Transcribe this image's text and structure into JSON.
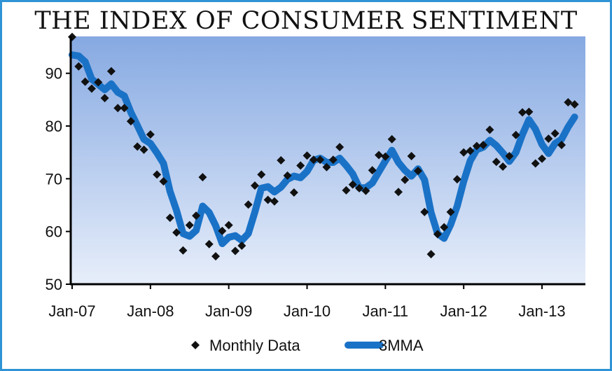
{
  "chart_data": {
    "type": "line",
    "title": "THE INDEX OF CONSUMER SENTIMENT",
    "xlabel": "",
    "ylabel": "",
    "ylim": [
      50,
      97
    ],
    "yticks": [
      50,
      60,
      70,
      80,
      90
    ],
    "x_tick_labels": [
      "Jan-07",
      "Jan-08",
      "Jan-09",
      "Jan-10",
      "Jan-11",
      "Jan-12",
      "Jan-13"
    ],
    "x_start": "2007-01",
    "legend": {
      "position": "bottom"
    },
    "colors": {
      "line": "#1a72c7",
      "marker": "#111111",
      "bg_top": "#86a9e2",
      "bg_bottom": "#e7eefa",
      "frame": "#2f93d6"
    },
    "series": [
      {
        "name": "Monthly Data",
        "style": "markers",
        "values": [
          96.9,
          91.3,
          88.4,
          87.1,
          88.3,
          85.3,
          90.4,
          83.4,
          83.4,
          80.9,
          76.1,
          75.5,
          78.4,
          70.8,
          69.5,
          62.6,
          59.8,
          56.4,
          61.2,
          63.0,
          70.3,
          57.6,
          55.3,
          60.1,
          61.2,
          56.3,
          57.3,
          65.1,
          68.7,
          70.8,
          66.0,
          65.7,
          73.5,
          70.6,
          67.4,
          72.5,
          74.4,
          73.6,
          73.6,
          72.2,
          73.6,
          76.0,
          67.8,
          68.9,
          68.2,
          67.7,
          71.6,
          74.5,
          74.2,
          77.5,
          67.5,
          69.8,
          74.3,
          71.5,
          63.7,
          55.7,
          59.5,
          60.8,
          63.7,
          69.9,
          75.0,
          75.3,
          76.2,
          76.4,
          79.3,
          73.2,
          72.3,
          74.3,
          78.3,
          82.6,
          82.7,
          72.9,
          73.8,
          77.6,
          78.6,
          76.4,
          84.5,
          84.1
        ]
      },
      {
        "name": "3MMA",
        "style": "line",
        "values": [
          93.5,
          93.3,
          92.2,
          88.9,
          87.9,
          86.9,
          88.0,
          86.4,
          85.7,
          82.6,
          80.1,
          77.5,
          76.7,
          74.9,
          72.9,
          67.6,
          64.0,
          59.6,
          59.1,
          60.2,
          64.8,
          63.6,
          61.1,
          57.7,
          58.9,
          59.2,
          58.3,
          59.6,
          63.7,
          68.2,
          68.5,
          67.5,
          68.4,
          69.9,
          70.5,
          70.2,
          71.4,
          73.5,
          73.9,
          73.1,
          73.1,
          73.9,
          72.5,
          70.9,
          68.3,
          68.3,
          69.2,
          71.3,
          73.4,
          75.4,
          73.1,
          71.6,
          70.5,
          71.9,
          69.8,
          63.6,
          59.6,
          58.7,
          61.3,
          64.8,
          69.5,
          73.4,
          75.5,
          76.0,
          77.3,
          76.3,
          74.9,
          73.3,
          75.0,
          78.4,
          81.2,
          79.4,
          76.5,
          74.8,
          76.7,
          77.5,
          79.8,
          81.7
        ]
      }
    ]
  }
}
